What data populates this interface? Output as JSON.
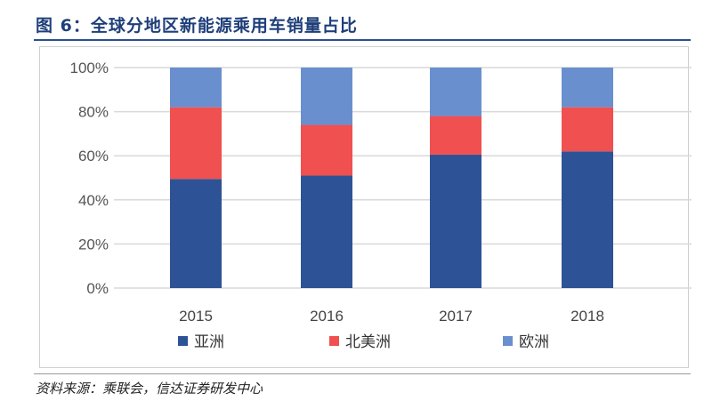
{
  "title": "图 6：全球分地区新能源乘用车销量占比",
  "source": "资料来源：乘联会，信达证券研发中心",
  "chart_data": {
    "type": "bar",
    "stacked": true,
    "percent": true,
    "categories": [
      "2015",
      "2016",
      "2017",
      "2018"
    ],
    "series": [
      {
        "name": "亚洲",
        "color": "#2e5296",
        "values": [
          49.5,
          51,
          60.5,
          62
        ]
      },
      {
        "name": "北美洲",
        "color": "#f05050",
        "values": [
          32.5,
          23,
          17.5,
          20
        ]
      },
      {
        "name": "欧洲",
        "color": "#6a8fcf",
        "values": [
          18,
          26,
          22,
          18
        ]
      }
    ],
    "yticks": [
      "0%",
      "20%",
      "40%",
      "60%",
      "80%",
      "100%"
    ],
    "ylim": [
      0,
      100
    ],
    "grid": true,
    "legend": "bottom"
  }
}
